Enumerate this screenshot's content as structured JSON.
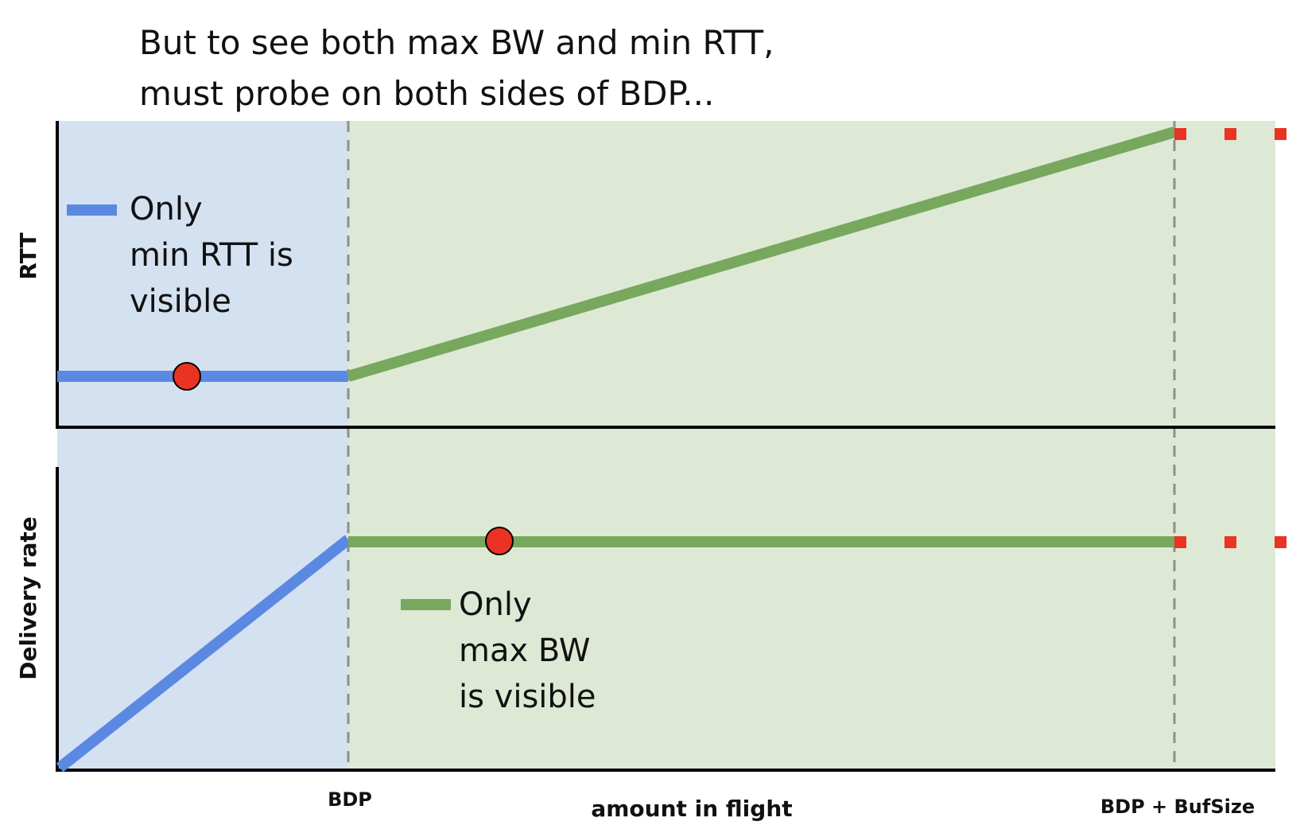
{
  "title": {
    "line1": "But to see both max BW and min RTT,",
    "line2": "must probe on both sides of BDP..."
  },
  "legend": {
    "rtt": {
      "line1": "Only",
      "line2": "min RTT is",
      "line3": "visible"
    },
    "bw": {
      "line1": "Only",
      "line2": "max BW",
      "line3": "is visible"
    }
  },
  "axes": {
    "top_ylabel": "RTT",
    "bottom_ylabel": "Delivery rate",
    "xlabel": "amount in flight",
    "tick_bdp": "BDP",
    "tick_bdp_buf": "BDP + BufSize"
  },
  "colors": {
    "blue": "#5b89e2",
    "green": "#78a75e",
    "red": "#ea3323",
    "region_blue": "#d3e1f1",
    "region_green": "#dde9d5",
    "dashed": "#8f8f8f"
  },
  "chart_data": [
    {
      "type": "line",
      "title": "",
      "ylabel": "RTT",
      "xlabel": "amount in flight",
      "x_ticks": [
        "BDP",
        "BDP + BufSize"
      ],
      "series": [
        {
          "segment": "below BDP",
          "trend": "flat at min RTT",
          "color": "blue"
        },
        {
          "segment": "BDP to BDP + BufSize",
          "trend": "rising linearly",
          "color": "green"
        },
        {
          "segment": "beyond BDP + BufSize",
          "trend": "dotted continuation",
          "color": "red"
        }
      ],
      "marker": {
        "segment": "below BDP",
        "meaning": "operating point"
      }
    },
    {
      "type": "line",
      "title": "",
      "ylabel": "Delivery rate",
      "xlabel": "amount in flight",
      "x_ticks": [
        "BDP",
        "BDP + BufSize"
      ],
      "series": [
        {
          "segment": "below BDP",
          "trend": "rising linearly from 0",
          "color": "blue"
        },
        {
          "segment": "BDP to BDP + BufSize",
          "trend": "flat at max BW",
          "color": "green"
        },
        {
          "segment": "beyond BDP + BufSize",
          "trend": "dotted continuation",
          "color": "red"
        }
      ],
      "marker": {
        "segment": "above BDP",
        "meaning": "operating point"
      }
    }
  ]
}
